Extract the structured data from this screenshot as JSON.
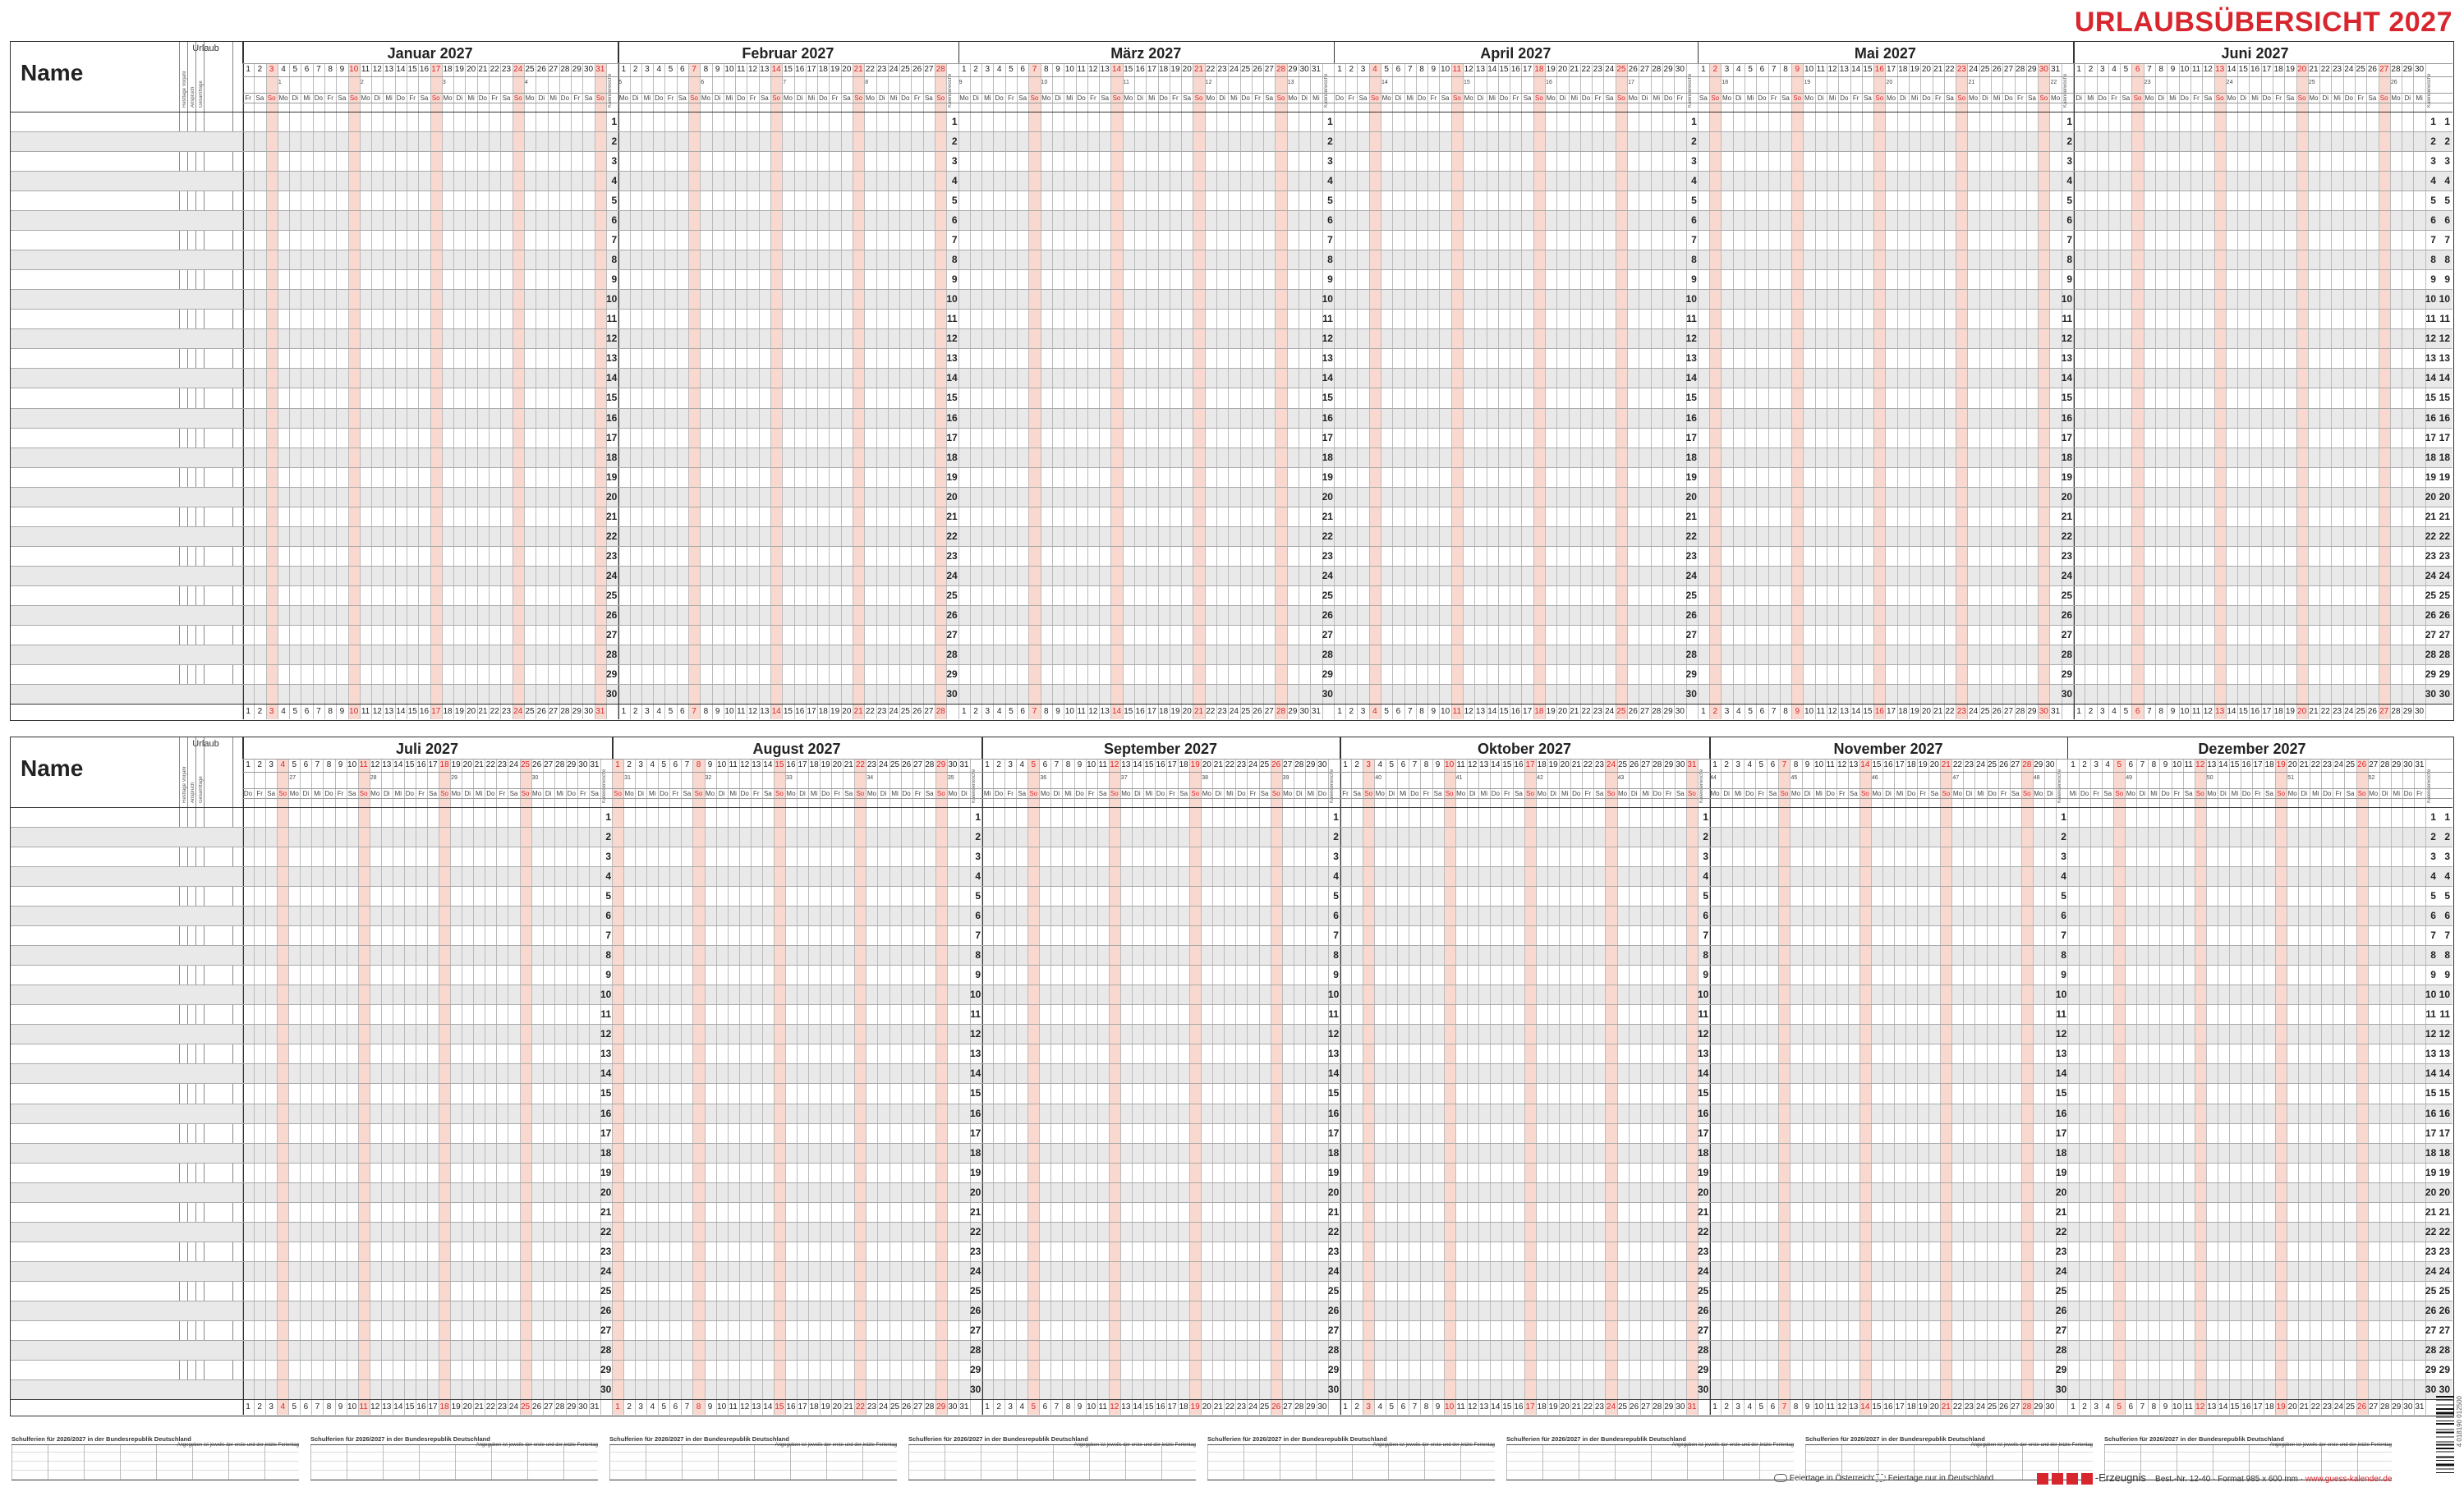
{
  "title": "URLAUBSÜBERSICHT 2027",
  "name_label": "Name",
  "urlaub_label": "Urlaub",
  "urlaub_sub": [
    "Resttage Vorjahr",
    "Anspruch",
    "Gesamttage"
  ],
  "kw_label": "Kalenderwoche",
  "halves": [
    {
      "months": [
        {
          "name": "Januar 2027",
          "days": 31,
          "start": 4
        },
        {
          "name": "Februar 2027",
          "days": 28,
          "start": 0
        },
        {
          "name": "März 2027",
          "days": 31,
          "start": 0
        },
        {
          "name": "April 2027",
          "days": 30,
          "start": 3
        },
        {
          "name": "Mai 2027",
          "days": 31,
          "start": 5
        },
        {
          "name": "Juni 2027",
          "days": 30,
          "start": 1
        }
      ]
    },
    {
      "months": [
        {
          "name": "Juli 2027",
          "days": 31,
          "start": 3
        },
        {
          "name": "August 2027",
          "days": 31,
          "start": 6
        },
        {
          "name": "September 2027",
          "days": 30,
          "start": 2
        },
        {
          "name": "Oktober 2027",
          "days": 31,
          "start": 4
        },
        {
          "name": "November 2027",
          "days": 30,
          "start": 0
        },
        {
          "name": "Dezember 2027",
          "days": 31,
          "start": 2
        }
      ]
    }
  ],
  "weekdays": [
    "Mo",
    "Di",
    "Mi",
    "Do",
    "Fr",
    "Sa",
    "So"
  ],
  "rows": 30,
  "colors": {
    "accent": "#d8262e",
    "sunday_stripe": "#f9d9cf",
    "alt_row": "#e9e9e9"
  },
  "legend": {
    "austria": "Feiertage in Österreich",
    "germany": "Feiertage nur in Deutschland"
  },
  "brand": {
    "product": "-Erzeugnis",
    "article": "Best.-Nr. 12-40 · Format 985 x 600 mm ·",
    "url": "www.guess-kalender.de"
  },
  "footer_heading": "Schulferien für 2026/2027 in der Bundesrepublik Deutschland",
  "footer_note": "Angegeben ist jeweils der erste und der letzte Ferientag",
  "barcode": "4 018190 012500"
}
